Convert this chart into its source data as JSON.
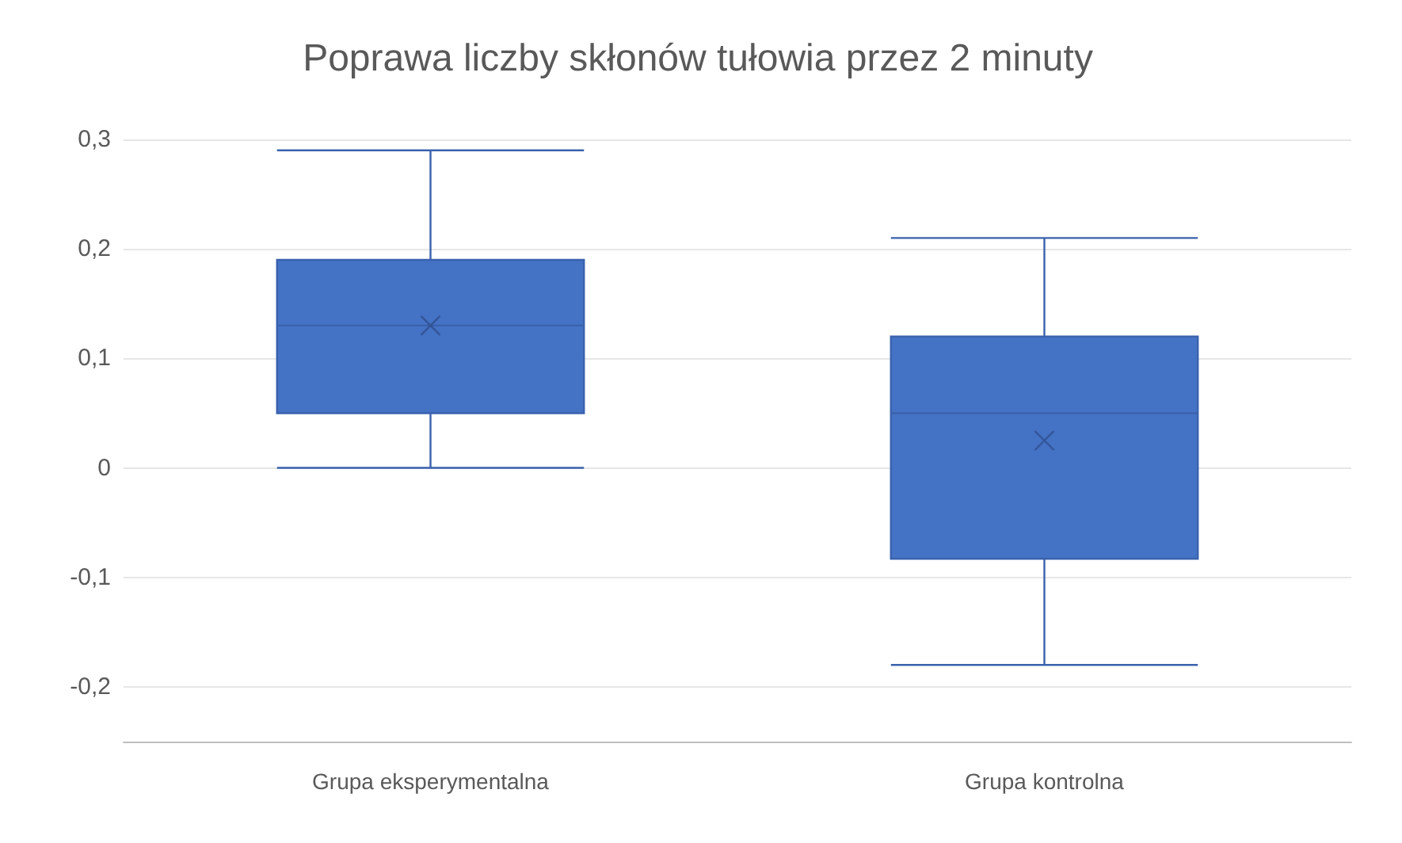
{
  "chart_data": {
    "type": "box",
    "title": "Poprawa liczby skłonów tułowia przez 2 minuty",
    "categories": [
      "Grupa eksperymentalna",
      "Grupa kontrolna"
    ],
    "boxes": [
      {
        "low": 0,
        "q1": 0.05,
        "median": 0.13,
        "q3": 0.19,
        "high": 0.29,
        "mean": 0.13
      },
      {
        "low": -0.18,
        "q1": -0.083,
        "median": 0.05,
        "q3": 0.12,
        "high": 0.21,
        "mean": 0.025
      }
    ],
    "color": "#4472c4",
    "ylim": [
      -0.25,
      0.3
    ],
    "yticks": [
      {
        "value": -0.2,
        "label": "-0,2"
      },
      {
        "value": -0.1,
        "label": "-0,1"
      },
      {
        "value": 0,
        "label": "0"
      },
      {
        "value": 0.1,
        "label": "0,1"
      },
      {
        "value": 0.2,
        "label": "0,2"
      },
      {
        "value": 0.3,
        "label": "0,3"
      }
    ],
    "grid": "y",
    "marker": "cross"
  }
}
